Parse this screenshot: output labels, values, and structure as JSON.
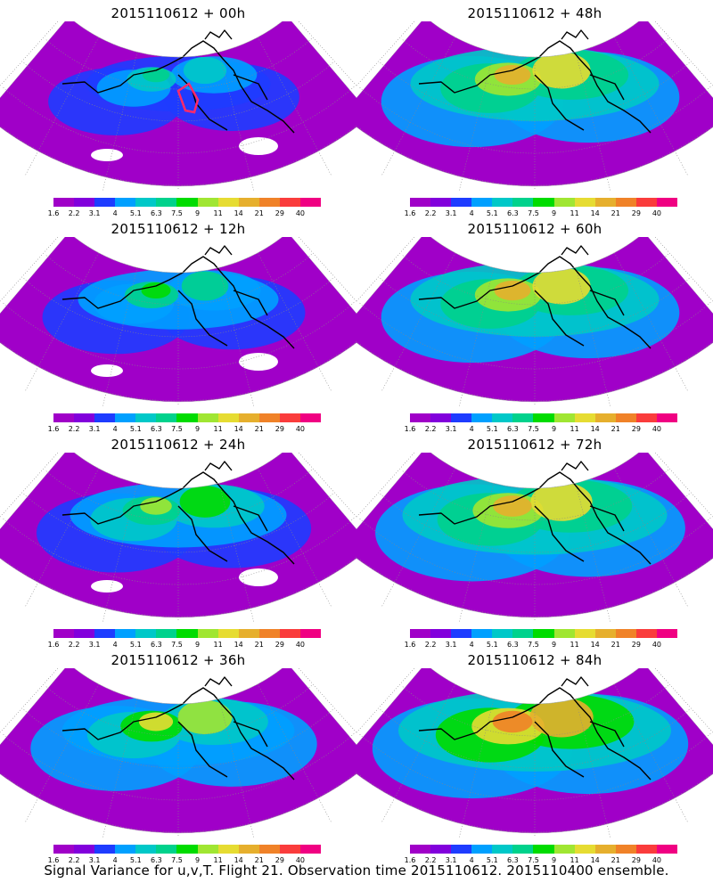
{
  "panels": [
    {
      "id": "p00",
      "title": "2015110612 + 00h",
      "intensity": 0.15,
      "flight_box": true
    },
    {
      "id": "p48",
      "title": "2015110612 + 48h",
      "intensity": 0.55,
      "flight_box": false
    },
    {
      "id": "p12",
      "title": "2015110612 + 12h",
      "intensity": 0.25,
      "flight_box": false
    },
    {
      "id": "p60",
      "title": "2015110612 + 60h",
      "intensity": 0.55,
      "flight_box": false
    },
    {
      "id": "p24",
      "title": "2015110612 + 24h",
      "intensity": 0.35,
      "flight_box": false
    },
    {
      "id": "p72",
      "title": "2015110612 + 72h",
      "intensity": 0.65,
      "flight_box": false
    },
    {
      "id": "p36",
      "title": "2015110612 + 36h",
      "intensity": 0.45,
      "flight_box": false
    },
    {
      "id": "p84",
      "title": "2015110612 + 84h",
      "intensity": 0.7,
      "flight_box": false
    }
  ],
  "colorbar": {
    "labels": [
      "1.6",
      "2.2",
      "3.1",
      "4",
      "5.1",
      "6.3",
      "7.5",
      "9",
      "11",
      "14",
      "21",
      "29",
      "40"
    ],
    "colors": [
      "#a000c8",
      "#8200dc",
      "#1e3cff",
      "#00a0ff",
      "#00c8c8",
      "#00d28c",
      "#00dc00",
      "#a0e632",
      "#e6dc32",
      "#e6af2d",
      "#f08228",
      "#fa3c3c",
      "#f00082"
    ]
  },
  "caption": "Signal Variance for u,v,T. Flight 21. Observation time 2015110612. 2015110400 ensemble."
}
